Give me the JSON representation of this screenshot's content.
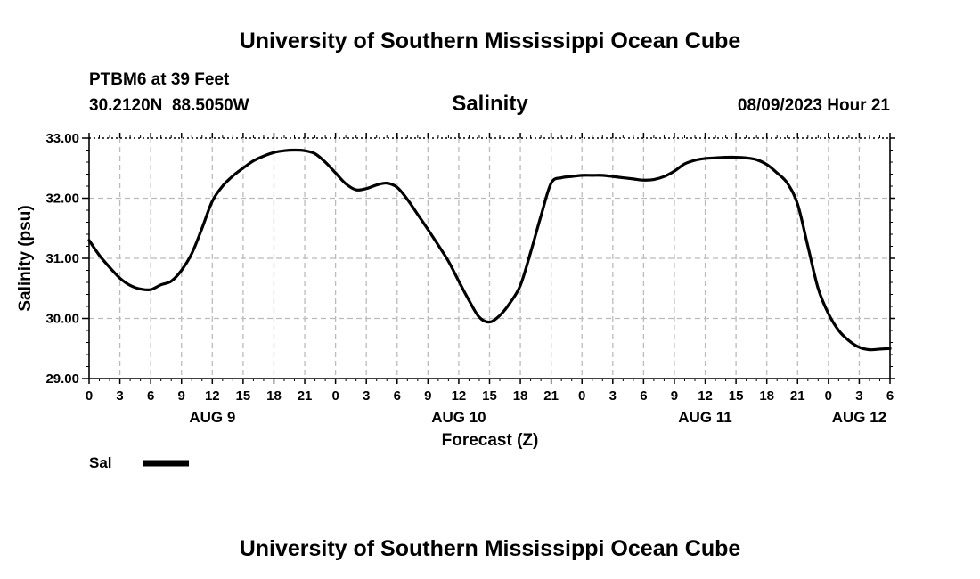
{
  "header": {
    "org_title_top": "University of Southern Mississippi Ocean Cube",
    "station_line": "PTBM6 at 39 Feet",
    "coords_line": "30.2120N  88.5050W",
    "valid_time": "08/09/2023 Hour 21",
    "org_title_bottom": "University of Southern Mississippi Ocean Cube"
  },
  "chart_data": {
    "type": "line",
    "title": "Salinity",
    "xlabel": "Forecast (Z)",
    "ylabel": "Salinity (psu)",
    "xlim": [
      0,
      78
    ],
    "ylim": [
      29.0,
      33.0
    ],
    "grid": true,
    "y_ticks": [
      29.0,
      30.0,
      31.0,
      32.0,
      33.0
    ],
    "y_tick_labels": [
      "29.00",
      "30.00",
      "31.00",
      "32.00",
      "33.00"
    ],
    "x_ticks": [
      0,
      3,
      6,
      9,
      12,
      15,
      18,
      21,
      24,
      27,
      30,
      33,
      36,
      39,
      42,
      45,
      48,
      51,
      54,
      57,
      60,
      63,
      66,
      69,
      72,
      75,
      78
    ],
    "x_tick_labels": [
      "0",
      "3",
      "6",
      "9",
      "12",
      "15",
      "18",
      "21",
      "0",
      "3",
      "6",
      "9",
      "12",
      "15",
      "18",
      "21",
      "0",
      "3",
      "6",
      "9",
      "12",
      "15",
      "18",
      "21",
      "0",
      "3",
      "6"
    ],
    "day_labels": [
      {
        "x": 12,
        "label": "AUG 9"
      },
      {
        "x": 36,
        "label": "AUG 10"
      },
      {
        "x": 60,
        "label": "AUG 11"
      },
      {
        "x": 75,
        "label": "AUG 12"
      }
    ],
    "legend": {
      "label": "Sal",
      "placement": "bottom-left"
    },
    "series": [
      {
        "name": "Sal",
        "x": [
          0,
          1,
          2,
          3,
          4,
          5,
          6,
          7,
          8,
          9,
          10,
          11,
          12,
          13,
          14,
          15,
          16,
          17,
          18,
          19,
          20,
          21,
          22,
          23,
          24,
          25,
          26,
          27,
          28,
          29,
          30,
          31,
          32,
          33,
          34,
          35,
          36,
          37,
          38,
          39,
          40,
          41,
          42,
          43,
          44,
          45,
          46,
          47,
          48,
          49,
          50,
          51,
          52,
          53,
          54,
          55,
          56,
          57,
          58,
          59,
          60,
          61,
          62,
          63,
          64,
          65,
          66,
          67,
          68,
          69,
          70,
          71,
          72,
          73,
          74,
          75,
          76,
          77,
          78
        ],
        "values": [
          31.3,
          31.05,
          30.85,
          30.67,
          30.55,
          30.49,
          30.48,
          30.56,
          30.62,
          30.8,
          31.08,
          31.5,
          31.95,
          32.2,
          32.37,
          32.5,
          32.62,
          32.7,
          32.76,
          32.79,
          32.8,
          32.79,
          32.74,
          32.6,
          32.42,
          32.24,
          32.14,
          32.16,
          32.22,
          32.25,
          32.18,
          31.98,
          31.73,
          31.48,
          31.22,
          30.95,
          30.62,
          30.3,
          30.02,
          29.94,
          30.05,
          30.26,
          30.55,
          31.1,
          31.7,
          32.25,
          32.34,
          32.36,
          32.38,
          32.38,
          32.38,
          32.36,
          32.34,
          32.32,
          32.3,
          32.31,
          32.36,
          32.45,
          32.57,
          32.63,
          32.66,
          32.67,
          32.68,
          32.68,
          32.67,
          32.64,
          32.56,
          32.42,
          32.25,
          31.9,
          31.2,
          30.5,
          30.08,
          29.8,
          29.63,
          29.52,
          29.48,
          29.49,
          29.5
        ]
      }
    ]
  }
}
